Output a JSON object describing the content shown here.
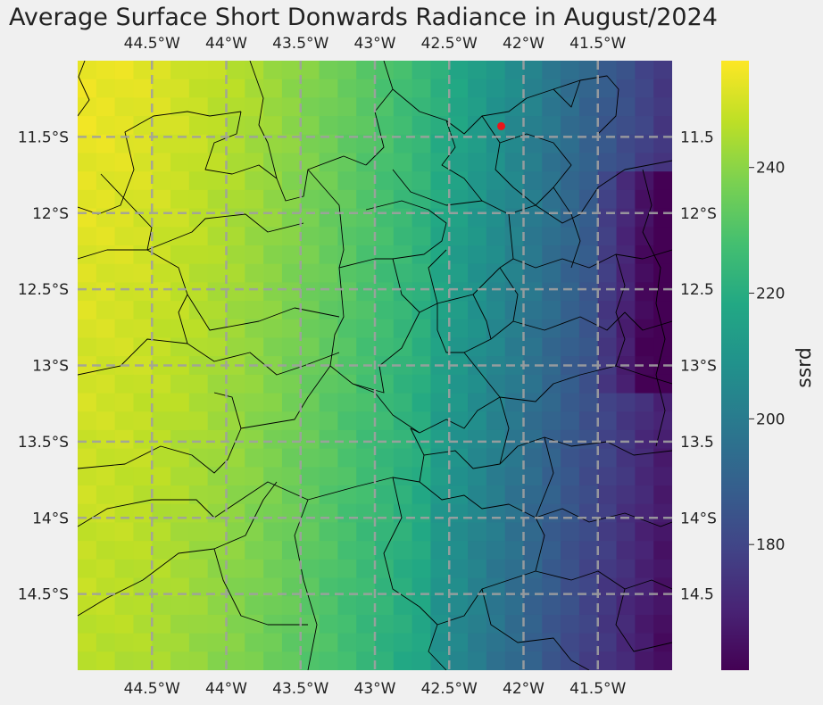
{
  "title": "Average Surface Short Donwards Radiance in August/2024",
  "chart_data": {
    "type": "heatmap",
    "variable": "ssrd",
    "colormap": "viridis",
    "colorbar_range": [
      160,
      257
    ],
    "colorbar_ticks": [
      "180",
      "200",
      "220",
      "240"
    ],
    "colorbar_label": "ssrd",
    "lon_range": [
      -45.0,
      -41.0
    ],
    "lat_range": [
      -15.0,
      -11.0
    ],
    "lon_ticks_top": [
      "44.5°W",
      "44°W",
      "43.5°W",
      "43°W",
      "42.5°W",
      "42°W",
      "41.5°W"
    ],
    "lon_ticks_bottom": [
      "44.5°W",
      "44°W",
      "43.5°W",
      "43°W",
      "42.5°W",
      "42°W",
      "41.5°W"
    ],
    "lat_ticks_left": [
      "11.5°S",
      "12°S",
      "12.5°S",
      "13°S",
      "13.5°S",
      "14°S",
      "14.5°S"
    ],
    "lat_ticks_right": [
      "11.5",
      "12°S",
      "12.5",
      "13°S",
      "13.5",
      "14°S",
      "14.5"
    ],
    "grid": true,
    "marker": {
      "color": "#e8161b",
      "lon": -42.15,
      "lat": -11.43
    }
  },
  "colors": {
    "background": "#f0f0f0",
    "gridline": "#a0a0a0",
    "borders": "#000000",
    "marker": "#e8161b"
  }
}
